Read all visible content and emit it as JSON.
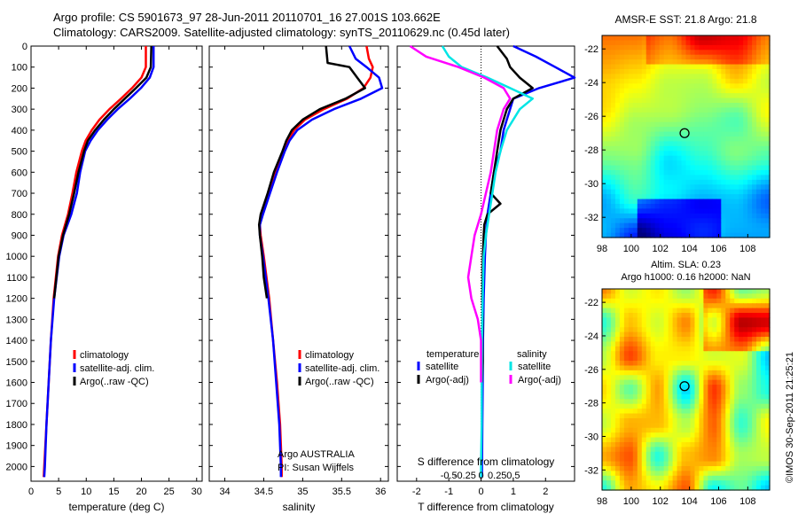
{
  "header": {
    "title_line1": "Argo profile: CS 5901673_97 28-Jun-2011 20110701_16 27.001S 103.662E",
    "title_line2": "Climatology: CARS2009. Satellite-adjusted climatology: synTS_20110629.nc (0.45d later)"
  },
  "footer_stamp": "©IMOS 30-Sep-2011 21:25:21",
  "colors": {
    "climatology": "#ff0000",
    "satellite": "#0000ff",
    "argo": "#000000",
    "satellite_salinity": "#00e5e5",
    "argo_salinity": "#ff00ff"
  },
  "chart_data": [
    {
      "type": "line",
      "name": "temperature-profile",
      "xlabel": "temperature (deg C)",
      "xlim": [
        0,
        31
      ],
      "xticks": [
        0,
        5,
        10,
        15,
        20,
        25,
        30
      ],
      "ylim": [
        2070,
        0
      ],
      "yticks": [
        0,
        100,
        200,
        300,
        400,
        500,
        600,
        700,
        800,
        900,
        1000,
        1100,
        1200,
        1300,
        1400,
        1500,
        1600,
        1700,
        1800,
        1900,
        2000
      ],
      "legend": [
        "climatology",
        "satellite-adj. clim.",
        "Argo(..raw -QC)"
      ],
      "series": [
        {
          "name": "climatology",
          "color": "#ff0000",
          "depth": [
            0,
            100,
            150,
            200,
            250,
            300,
            350,
            400,
            450,
            500,
            600,
            700,
            800,
            900,
            1000,
            1200,
            1400,
            1600,
            1800,
            2000,
            2050
          ],
          "values": [
            20.8,
            20.8,
            20.0,
            18.3,
            16.3,
            14.2,
            12.4,
            11.0,
            9.9,
            9.2,
            8.2,
            7.5,
            6.7,
            5.6,
            4.9,
            4.1,
            3.6,
            3.2,
            2.8,
            2.4,
            2.3
          ]
        },
        {
          "name": "satellite-adj. clim.",
          "color": "#0000ff",
          "depth": [
            0,
            100,
            150,
            200,
            250,
            300,
            350,
            400,
            450,
            500,
            600,
            700,
            800,
            900,
            1000,
            1200,
            1400,
            1600,
            1800,
            2000,
            2050
          ],
          "values": [
            22.2,
            22.2,
            21.5,
            19.9,
            17.9,
            15.7,
            13.8,
            12.1,
            10.8,
            9.8,
            8.9,
            8.3,
            7.3,
            5.9,
            5.1,
            4.2,
            3.6,
            3.2,
            2.8,
            2.5,
            2.4
          ]
        },
        {
          "name": "Argo(..raw -QC)",
          "color": "#000000",
          "depth": [
            0,
            100,
            150,
            200,
            250,
            300,
            350,
            400,
            450,
            500,
            600,
            700,
            800,
            900,
            1000,
            1100,
            1200
          ],
          "values": [
            21.8,
            21.7,
            20.9,
            19.0,
            17.0,
            15.0,
            13.2,
            11.6,
            10.3,
            9.6,
            8.6,
            7.8,
            6.9,
            5.8,
            5.0,
            4.6,
            4.2
          ]
        }
      ]
    },
    {
      "type": "line",
      "name": "salinity-profile",
      "xlabel": "salinity",
      "xlim": [
        33.8,
        36.1
      ],
      "xticks": [
        34,
        34.5,
        35,
        35.5,
        36
      ],
      "ylim": [
        2070,
        0
      ],
      "legend": [
        "climatology",
        "satellite-adj. clim.",
        "Argo(..raw -QC)"
      ],
      "annotation_line1": "Argo AUSTRALIA",
      "annotation_line2": "PI: Susan Wijffels",
      "series": [
        {
          "name": "climatology",
          "color": "#ff0000",
          "depth": [
            0,
            60,
            100,
            150,
            200,
            250,
            300,
            350,
            400,
            450,
            500,
            600,
            700,
            800,
            850,
            900,
            1000,
            1200,
            1400,
            1600,
            1800,
            2000,
            2050
          ],
          "values": [
            35.82,
            35.85,
            35.9,
            35.87,
            35.78,
            35.57,
            35.27,
            35.03,
            34.89,
            34.81,
            34.76,
            34.65,
            34.57,
            34.48,
            34.45,
            34.46,
            34.5,
            34.57,
            34.62,
            34.67,
            34.71,
            34.73,
            34.73
          ]
        },
        {
          "name": "satellite-adj. clim.",
          "color": "#0000ff",
          "depth": [
            0,
            60,
            100,
            150,
            200,
            250,
            300,
            350,
            400,
            450,
            500,
            600,
            700,
            800,
            850,
            900,
            1000,
            1200,
            1400,
            1600,
            1800,
            2000,
            2050
          ],
          "values": [
            35.6,
            35.68,
            35.82,
            35.98,
            36.02,
            35.75,
            35.4,
            35.12,
            34.93,
            34.83,
            34.77,
            34.67,
            34.58,
            34.49,
            34.45,
            34.45,
            34.49,
            34.56,
            34.62,
            34.66,
            34.7,
            34.72,
            34.72
          ]
        },
        {
          "name": "Argo(..raw -QC)",
          "color": "#000000",
          "depth": [
            0,
            80,
            100,
            150,
            200,
            250,
            300,
            350,
            400,
            450,
            500,
            600,
            700,
            800,
            850,
            900,
            1000,
            1100,
            1200
          ],
          "values": [
            35.3,
            35.32,
            35.6,
            35.7,
            35.8,
            35.55,
            35.22,
            35.0,
            34.86,
            34.79,
            34.74,
            34.63,
            34.55,
            34.46,
            34.44,
            34.45,
            34.48,
            34.5,
            34.54
          ]
        }
      ]
    },
    {
      "type": "line",
      "name": "difference-profile",
      "xlabel_bottom": "T difference from climatology",
      "xlabel_top": "S difference from climatology",
      "xlim_bottom": [
        -2.6,
        2.9
      ],
      "xticks_bottom": [
        -2,
        -1,
        0,
        1,
        2
      ],
      "xticks_top": [
        "-0.5",
        "-0.25",
        "0",
        "0.25",
        "0.5"
      ],
      "ylim": [
        2070,
        0
      ],
      "legend_title_left": "temperature",
      "legend_title_right": "salinity",
      "legend": [
        "satellite",
        "Argo(-adj)",
        "satellite",
        "Argo(-adj)"
      ],
      "series": [
        {
          "name": "satellite",
          "quantity": "temperature",
          "color": "#0000ff",
          "depth": [
            0,
            50,
            100,
            150,
            200,
            250,
            300,
            350,
            400,
            500,
            600,
            700,
            800,
            900,
            1000,
            1100,
            1200,
            1400,
            1600,
            1800,
            2000,
            2050
          ],
          "values": [
            1.0,
            1.7,
            2.3,
            2.9,
            1.8,
            1.0,
            0.9,
            0.8,
            0.7,
            0.6,
            0.4,
            0.3,
            0.2,
            0.15,
            0.12,
            0.1,
            0.08,
            0.06,
            0.05,
            0.04,
            0.03,
            0.03
          ]
        },
        {
          "name": "Argo(-adj)",
          "quantity": "temperature",
          "color": "#000000",
          "depth": [
            0,
            60,
            100,
            150,
            200,
            250,
            300,
            350,
            400,
            500,
            600,
            700,
            750,
            800,
            850,
            900,
            1000,
            1100,
            1200,
            1300,
            1400,
            1500,
            1600
          ],
          "values": [
            0.5,
            0.8,
            0.9,
            1.2,
            1.6,
            1.0,
            0.8,
            0.7,
            0.6,
            0.5,
            0.4,
            0.3,
            0.6,
            0.2,
            0.1,
            0.08,
            0.06,
            0.05,
            0.04,
            0.05,
            0.04,
            0.05,
            0.03
          ]
        },
        {
          "name": "satellite",
          "quantity": "salinity",
          "color": "#00e5e5",
          "depth": [
            0,
            50,
            100,
            150,
            200,
            250,
            300,
            400,
            500,
            600,
            700,
            800,
            900,
            1000,
            1200,
            1400,
            1600,
            1800,
            2000,
            2050
          ],
          "values": [
            -1.2,
            -1.0,
            -0.6,
            0.2,
            0.9,
            1.6,
            1.2,
            0.8,
            0.6,
            0.45,
            0.35,
            0.25,
            0.15,
            0.08,
            0.05,
            0.03,
            0.02,
            0.02,
            0.0,
            0.0
          ]
        },
        {
          "name": "Argo(-adj)",
          "quantity": "salinity",
          "color": "#ff00ff",
          "depth": [
            0,
            50,
            100,
            150,
            200,
            250,
            300,
            400,
            500,
            600,
            700,
            800,
            900,
            1000,
            1100,
            1200,
            1300,
            1400,
            1500,
            1600
          ],
          "values": [
            -2.2,
            -1.7,
            -0.7,
            0.1,
            0.7,
            0.9,
            0.7,
            0.5,
            0.4,
            0.3,
            0.15,
            0.0,
            -0.2,
            -0.3,
            -0.4,
            -0.3,
            -0.1,
            0.0,
            0.0,
            0.0
          ]
        }
      ]
    },
    {
      "type": "heatmap",
      "name": "sst-map",
      "title": "AMSR-E SST: 21.8 Argo: 21.8",
      "xlim": [
        98,
        109.5
      ],
      "xticks": [
        98,
        100,
        102,
        104,
        106,
        108
      ],
      "ylim": [
        -33.2,
        -21.2
      ],
      "yticks": [
        -22,
        -24,
        -26,
        -28,
        -30,
        -32
      ],
      "argo_position": [
        103.662,
        -27.001
      ]
    },
    {
      "type": "heatmap",
      "name": "sla-map",
      "title_line1": "Altim. SLA: 0.23",
      "title_line2": "Argo h1000: 0.16 h2000: NaN",
      "xlim": [
        98,
        109.5
      ],
      "xticks": [
        98,
        100,
        102,
        104,
        106,
        108
      ],
      "ylim": [
        -33.2,
        -21.2
      ],
      "yticks": [
        -22,
        -24,
        -26,
        -28,
        -30,
        -32
      ],
      "argo_position": [
        103.662,
        -27.001
      ]
    }
  ]
}
